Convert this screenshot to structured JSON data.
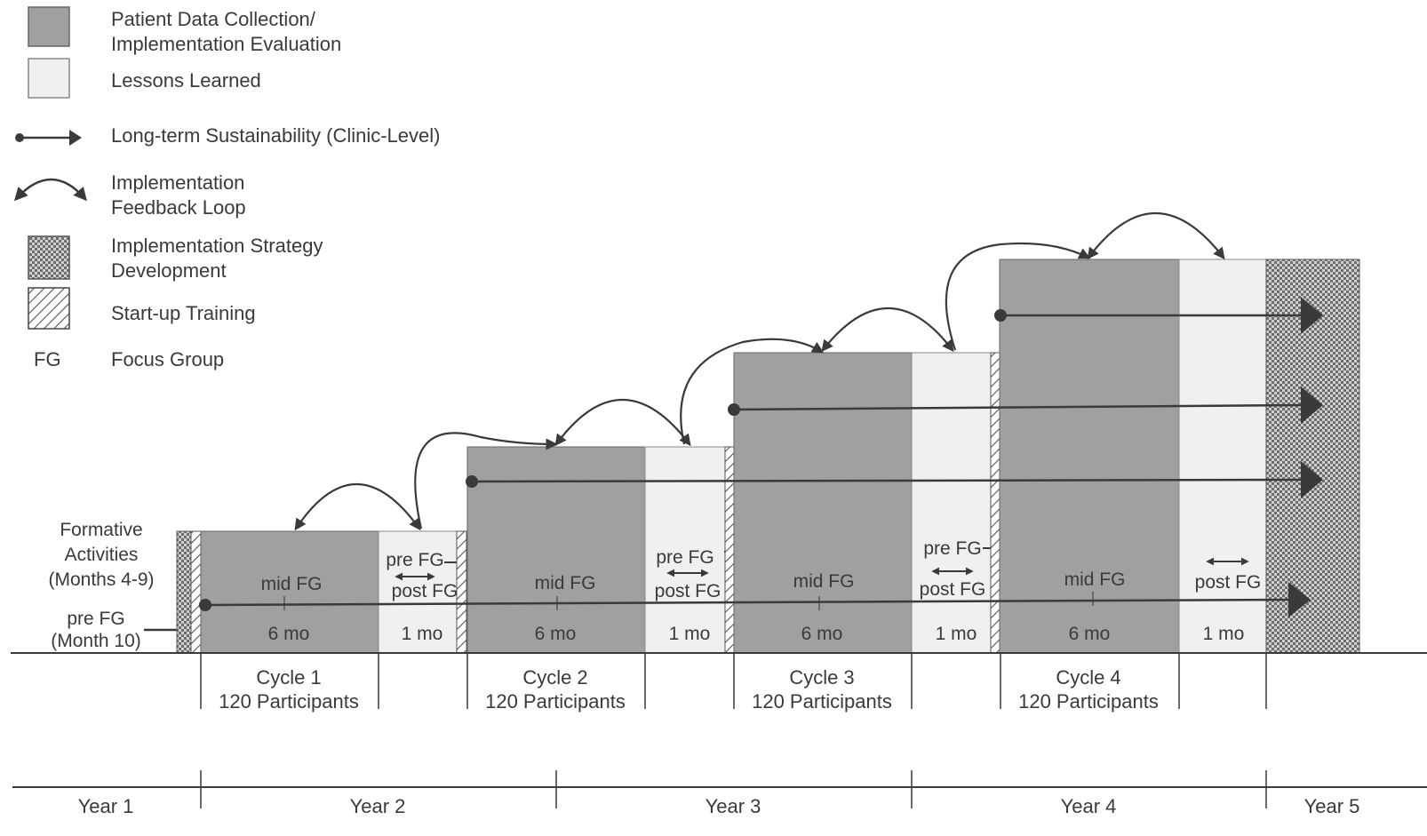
{
  "legend": {
    "patient_data_line1": "Patient Data Collection/",
    "patient_data_line2": "Implementation Evaluation",
    "lessons_learned": "Lessons Learned",
    "sustainability": "Long-term Sustainability (Clinic-Level)",
    "feedback_line1": "Implementation",
    "feedback_line2": "Feedback Loop",
    "strategy_line1": "Implementation Strategy",
    "strategy_line2": "Development",
    "startup_training": "Start-up Training",
    "fg_abbrev": "FG",
    "fg_meaning": "Focus Group"
  },
  "formative": {
    "line1": "Formative",
    "line2": "Activities",
    "line3": "(Months 4-9)",
    "pre_fg": "pre FG",
    "month": "(Month 10)"
  },
  "cycles": [
    {
      "title": "Cycle 1",
      "participants": "120 Participants",
      "mid": "mid FG",
      "dur6": "6 mo",
      "pre": "pre FG",
      "post": "post FG",
      "dur1": "1 mo"
    },
    {
      "title": "Cycle 2",
      "participants": "120 Participants",
      "mid": "mid FG",
      "dur6": "6 mo",
      "pre": "pre FG",
      "post": "post FG",
      "dur1": "1 mo"
    },
    {
      "title": "Cycle 3",
      "participants": "120 Participants",
      "mid": "mid FG",
      "dur6": "6 mo",
      "pre": "pre FG",
      "post": "post FG",
      "dur1": "1 mo"
    },
    {
      "title": "Cycle 4",
      "participants": "120 Participants",
      "mid": "mid FG",
      "dur6": "6 mo",
      "pre": "",
      "post": "post FG",
      "dur1": "1 mo"
    }
  ],
  "years": [
    "Year 1",
    "Year 2",
    "Year 3",
    "Year 4",
    "Year 5"
  ],
  "colors": {
    "dark": "#a0a0a0",
    "light": "#f0f0f0",
    "line": "#3a3a3a"
  }
}
